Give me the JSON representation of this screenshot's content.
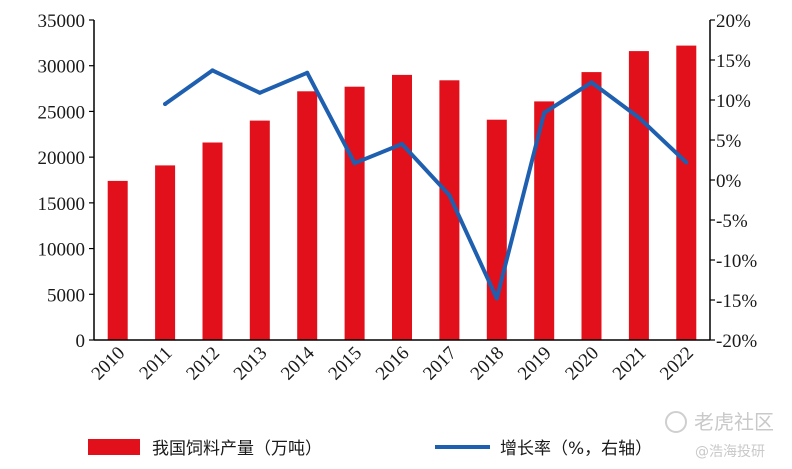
{
  "chart_data": {
    "type": "bar+line",
    "categories": [
      "2010",
      "2011",
      "2012",
      "2013",
      "2014",
      "2015",
      "2016",
      "2017",
      "2018",
      "2019",
      "2020",
      "2021",
      "2022"
    ],
    "series": [
      {
        "name": "我国饲料产量（万吨）",
        "type": "bar",
        "axis": "left",
        "color": "#e1101b",
        "values": [
          17400,
          19100,
          21600,
          24000,
          27200,
          27700,
          29000,
          28400,
          24100,
          26100,
          29300,
          31600,
          32200
        ]
      },
      {
        "name": "增长率（%，右轴）",
        "type": "line",
        "axis": "right",
        "color": "#1f5fb0",
        "values": [
          null,
          9.5,
          13.7,
          10.9,
          13.4,
          2.1,
          4.5,
          -1.9,
          -14.8,
          8.4,
          12.2,
          7.8,
          2.2
        ]
      }
    ],
    "y_left": {
      "min": 0,
      "max": 35000,
      "step": 5000,
      "ticks": [
        "0",
        "5000",
        "10000",
        "15000",
        "20000",
        "25000",
        "30000",
        "35000"
      ]
    },
    "y_right": {
      "min": -20,
      "max": 20,
      "step": 5,
      "ticks": [
        "-20%",
        "-15%",
        "-10%",
        "-5%",
        "0%",
        "5%",
        "10%",
        "15%",
        "20%"
      ]
    },
    "grid": false,
    "legend": "bottom"
  },
  "watermarks": {
    "top": "老虎社区",
    "bottom": "@浩海投研"
  }
}
